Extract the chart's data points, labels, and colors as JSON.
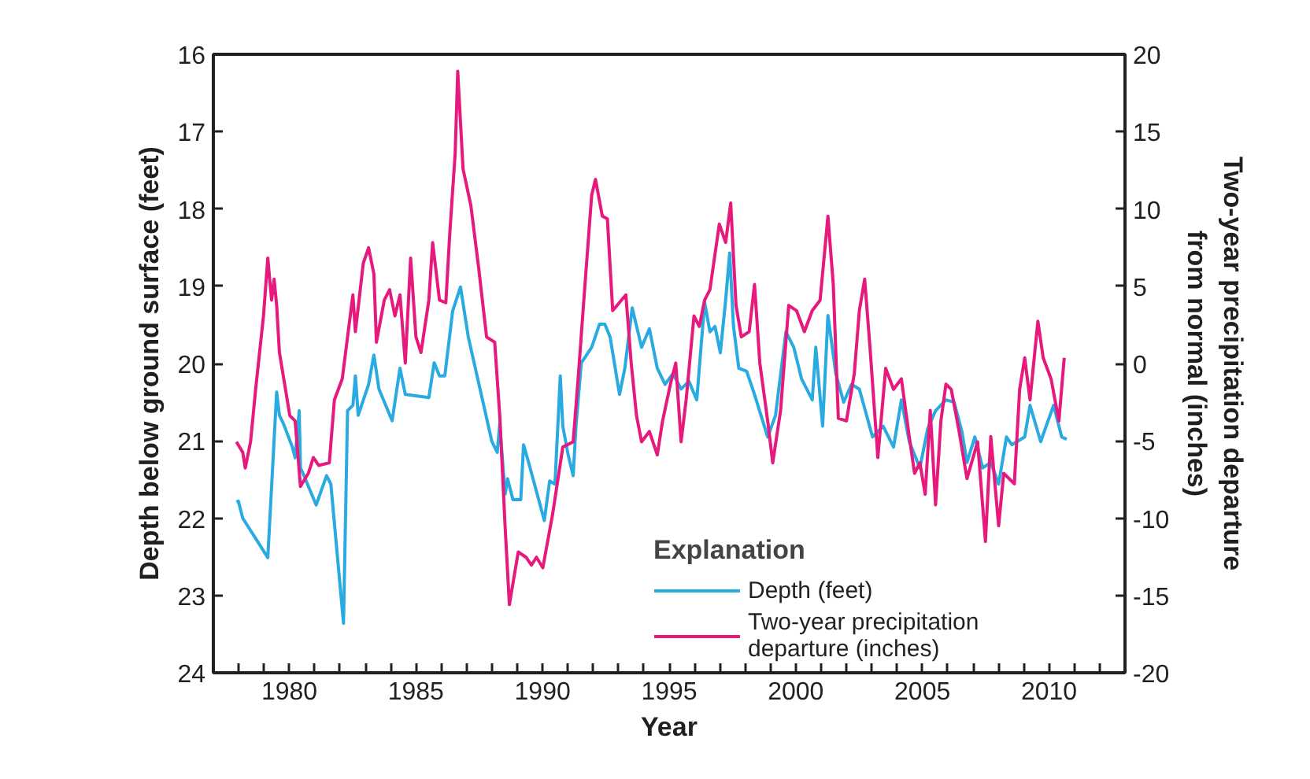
{
  "chart_data": {
    "type": "line",
    "xlabel": "Year",
    "ylabel": "Depth below ground surface (feet)",
    "y2label": "Two-year precipitation departure from normal (inches)",
    "legend_title": "Explanation",
    "legend": "bottom",
    "grid": false,
    "xlim": [
      1977,
      2013
    ],
    "ylim": [
      24,
      16
    ],
    "y2lim": [
      -20,
      20
    ],
    "xticks": [
      {
        "value": 1977,
        "label": null
      },
      {
        "value": 1978,
        "label": null
      },
      {
        "value": 1979,
        "label": null
      },
      1980,
      {
        "value": 1981,
        "label": null
      },
      {
        "value": 1982,
        "label": null
      },
      {
        "value": 1983,
        "label": null
      },
      {
        "value": 1984,
        "label": null
      },
      1985,
      {
        "value": 1986,
        "label": null
      },
      {
        "value": 1987,
        "label": null
      },
      {
        "value": 1988,
        "label": null
      },
      {
        "value": 1989,
        "label": null
      },
      1990,
      {
        "value": 1991,
        "label": null
      },
      {
        "value": 1992,
        "label": null
      },
      {
        "value": 1993,
        "label": null
      },
      {
        "value": 1994,
        "label": null
      },
      1995,
      {
        "value": 1996,
        "label": null
      },
      {
        "value": 1997,
        "label": null
      },
      {
        "value": 1998,
        "label": null
      },
      {
        "value": 1999,
        "label": null
      },
      2000,
      {
        "value": 2001,
        "label": null
      },
      {
        "value": 2002,
        "label": null
      },
      {
        "value": 2003,
        "label": null
      },
      {
        "value": 2004,
        "label": null
      },
      2005,
      {
        "value": 2006,
        "label": null
      },
      {
        "value": 2007,
        "label": null
      },
      {
        "value": 2008,
        "label": null
      },
      {
        "value": 2009,
        "label": null
      },
      2010,
      {
        "value": 2011,
        "label": null
      },
      {
        "value": 2012,
        "label": null
      }
    ],
    "yticks": [
      16,
      17,
      18,
      19,
      20,
      21,
      22,
      23,
      24
    ],
    "y2ticks": [
      20,
      15,
      10,
      5,
      0,
      -5,
      -10,
      -15,
      -20
    ],
    "series": [
      {
        "name": "Depth (feet)",
        "color": "#29aae1",
        "x": [
          1977.91,
          1977.99,
          1978.16,
          1979.15,
          1979.5,
          1979.61,
          1979.77,
          1980.12,
          1980.23,
          1980.39,
          1980.44,
          1980.54,
          1981.06,
          1981.47,
          1981.64,
          1982.14,
          1982.3,
          1982.51,
          1982.61,
          1982.72,
          1983.13,
          1983.34,
          1983.54,
          1984.06,
          1984.37,
          1984.58,
          1985.51,
          1985.72,
          1985.93,
          1986.14,
          1986.45,
          1986.76,
          1987.07,
          1988.0,
          1988.21,
          1988.31,
          1988.52,
          1988.62,
          1988.83,
          1989.14,
          1989.25,
          1989.45,
          1990.07,
          1990.28,
          1990.49,
          1990.7,
          1990.8,
          1991.01,
          1991.21,
          1991.32,
          1991.53,
          1991.94,
          1992.25,
          1992.46,
          1992.67,
          1993.04,
          1993.25,
          1993.54,
          1993.91,
          1994.22,
          1994.53,
          1994.84,
          1995.15,
          1995.47,
          1995.78,
          1996.09,
          1996.4,
          1996.61,
          1996.81,
          1997.02,
          1997.23,
          1997.39,
          1997.54,
          1997.75,
          1998.06,
          1998.37,
          1998.89,
          1999.2,
          1999.61,
          1999.92,
          2000.23,
          2000.65,
          2000.79,
          2001.06,
          2001.27,
          2001.58,
          2001.89,
          2002.2,
          2002.51,
          2003.03,
          2003.45,
          2003.86,
          2004.17,
          2004.48,
          2004.9,
          2005.21,
          2005.52,
          2005.93,
          2006.25,
          2006.56,
          2006.76,
          2007.07,
          2007.38,
          2007.7,
          2008.01,
          2008.32,
          2008.53,
          2009.04,
          2009.25,
          2009.67,
          2010.18,
          2010.5,
          2010.7
        ],
        "values": [
          21.79,
          21.78,
          22.0,
          22.51,
          20.37,
          20.67,
          20.78,
          21.08,
          21.22,
          20.61,
          21.35,
          21.42,
          21.83,
          21.45,
          21.56,
          23.36,
          20.61,
          20.54,
          20.16,
          20.67,
          20.27,
          19.89,
          20.33,
          20.74,
          20.06,
          20.4,
          20.44,
          19.99,
          20.16,
          20.16,
          19.32,
          19.01,
          19.66,
          21.01,
          21.15,
          20.78,
          21.69,
          21.49,
          21.76,
          21.76,
          21.05,
          21.28,
          22.03,
          21.52,
          21.56,
          20.16,
          20.81,
          21.18,
          21.45,
          20.81,
          19.99,
          19.79,
          19.49,
          19.49,
          19.66,
          20.4,
          20.06,
          19.28,
          19.79,
          19.55,
          20.06,
          20.27,
          20.13,
          20.33,
          20.23,
          20.47,
          19.21,
          19.59,
          19.52,
          19.86,
          19.18,
          18.57,
          19.52,
          20.06,
          20.1,
          20.4,
          20.95,
          20.67,
          19.59,
          19.79,
          20.2,
          20.47,
          19.79,
          20.81,
          19.38,
          20.13,
          20.5,
          20.27,
          20.33,
          20.95,
          20.81,
          21.08,
          20.47,
          21.01,
          21.35,
          20.84,
          20.61,
          20.47,
          20.5,
          20.88,
          21.28,
          20.95,
          21.35,
          21.28,
          21.56,
          20.95,
          21.05,
          20.95,
          20.54,
          21.01,
          20.54,
          20.95,
          20.98
        ]
      },
      {
        "name": "Two-year precipitation departure (inches)",
        "color": "#e6197d",
        "axis": "y2",
        "x": [
          1977.91,
          1978.16,
          1978.26,
          1978.47,
          1978.67,
          1978.98,
          1979.15,
          1979.3,
          1979.4,
          1979.5,
          1979.61,
          1980.02,
          1980.23,
          1980.44,
          1980.75,
          1980.95,
          1981.16,
          1981.58,
          1981.78,
          1982.09,
          1982.3,
          1982.51,
          1982.61,
          1982.92,
          1983.13,
          1983.34,
          1983.44,
          1983.75,
          1983.96,
          1984.17,
          1984.37,
          1984.58,
          1984.79,
          1985.0,
          1985.2,
          1985.51,
          1985.66,
          1985.93,
          1986.18,
          1986.34,
          1986.55,
          1986.65,
          1986.86,
          1987.17,
          1987.48,
          1987.79,
          1988.11,
          1988.31,
          1988.52,
          1988.69,
          1989.04,
          1989.35,
          1989.56,
          1989.76,
          1990.01,
          1990.39,
          1990.8,
          1991.21,
          1991.42,
          1991.63,
          1991.94,
          1992.09,
          1992.36,
          1992.56,
          1992.77,
          1993.29,
          1993.5,
          1993.71,
          1993.91,
          1994.22,
          1994.53,
          1994.74,
          1995.05,
          1995.26,
          1995.47,
          1995.67,
          1995.98,
          1996.19,
          1996.4,
          1996.61,
          1996.98,
          1997.23,
          1997.43,
          1997.64,
          1997.85,
          1998.16,
          1998.37,
          1998.58,
          1998.89,
          1999.09,
          1999.4,
          1999.72,
          2000.03,
          2000.34,
          2000.65,
          2000.96,
          2001.27,
          2001.48,
          2001.68,
          2002.0,
          2002.31,
          2002.51,
          2002.72,
          2002.93,
          2003.24,
          2003.55,
          2003.86,
          2004.17,
          2004.48,
          2004.69,
          2004.9,
          2005.11,
          2005.31,
          2005.52,
          2005.73,
          2005.93,
          2006.14,
          2006.45,
          2006.76,
          2007.18,
          2007.49,
          2007.7,
          2008.01,
          2008.21,
          2008.63,
          2008.84,
          2009.04,
          2009.25,
          2009.56,
          2009.77,
          2010.08,
          2010.39,
          2010.6
        ],
        "values": [
          -5.06,
          -5.74,
          -6.76,
          -5.06,
          -1.67,
          3.08,
          6.82,
          4.1,
          5.46,
          3.76,
          0.71,
          -3.37,
          -3.71,
          -7.95,
          -7.1,
          -6.08,
          -6.59,
          -6.42,
          -2.35,
          -0.99,
          1.72,
          4.44,
          2.06,
          6.48,
          7.49,
          5.8,
          1.38,
          4.1,
          4.78,
          3.08,
          4.44,
          0.03,
          6.82,
          1.72,
          0.71,
          4.1,
          7.83,
          4.1,
          3.93,
          8.51,
          13.61,
          18.9,
          12.59,
          10.21,
          6.14,
          1.72,
          1.38,
          -3.37,
          -10.5,
          -15.59,
          -12.19,
          -12.53,
          -13.04,
          -12.53,
          -13.21,
          -9.82,
          -5.4,
          -5.06,
          -0.65,
          4.1,
          10.89,
          11.91,
          9.53,
          9.36,
          3.42,
          4.44,
          0.03,
          -3.37,
          -5.06,
          -4.39,
          -5.91,
          -3.71,
          -1.33,
          0.03,
          -5.06,
          -2.35,
          3.08,
          2.4,
          4.1,
          4.78,
          9.02,
          7.83,
          10.38,
          3.76,
          1.72,
          2.06,
          5.12,
          0.03,
          -3.71,
          -6.42,
          -3.03,
          3.76,
          3.42,
          2.06,
          3.42,
          4.1,
          9.53,
          5.12,
          -3.54,
          -3.71,
          -0.65,
          3.42,
          5.46,
          1.05,
          -6.08,
          -0.31,
          -1.67,
          -0.99,
          -4.72,
          -7.1,
          -6.42,
          -8.46,
          -3.03,
          -9.14,
          -3.71,
          -1.33,
          -1.67,
          -4.39,
          -7.44,
          -5.06,
          -11.51,
          -4.72,
          -10.5,
          -7.1,
          -7.78,
          -1.67,
          0.37,
          -2.35,
          2.74,
          0.37,
          -0.99,
          -3.71,
          0.37
        ]
      }
    ]
  }
}
